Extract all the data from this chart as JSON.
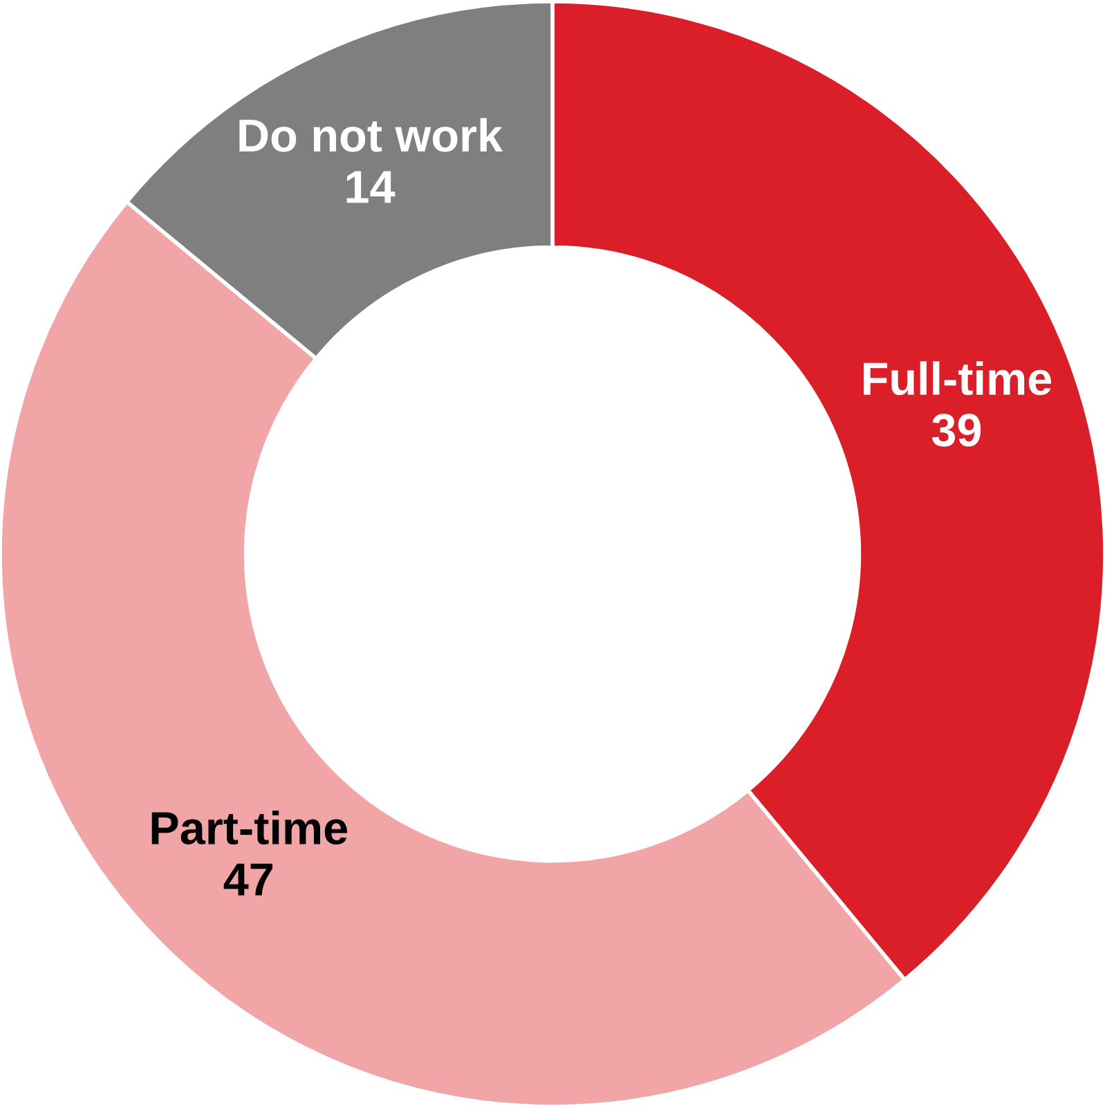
{
  "chart_data": {
    "type": "donut",
    "categories": [
      "Full-time",
      "Part-time",
      "Do not work"
    ],
    "values": [
      39,
      47,
      14
    ],
    "colors": [
      "#da1f28",
      "#f2a5a7",
      "#7f7f7f"
    ],
    "data_labels": true,
    "legend": false
  }
}
